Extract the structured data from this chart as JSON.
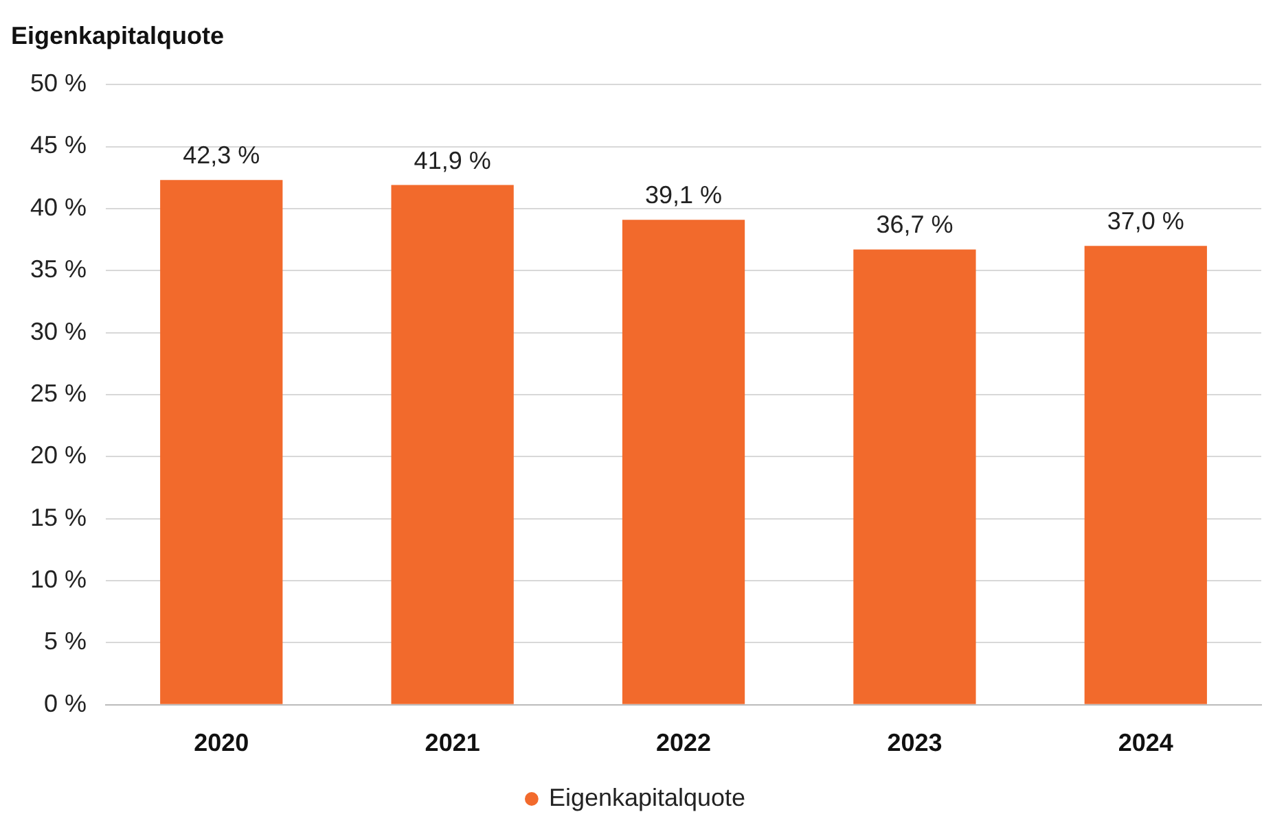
{
  "chart_data": {
    "type": "bar",
    "title": "Eigenkapitalquote",
    "categories": [
      "2020",
      "2021",
      "2022",
      "2023",
      "2024"
    ],
    "series": [
      {
        "name": "Eigenkapitalquote",
        "color": "#f26a2c",
        "values": [
          42.3,
          41.9,
          39.1,
          36.7,
          37.0
        ],
        "value_labels": [
          "42,3 %",
          "41,9 %",
          "39,1 %",
          "36,7 %",
          "37,0 %"
        ]
      }
    ],
    "ylim": [
      0,
      50
    ],
    "yticks": [
      {
        "value": 0,
        "label": "0 %"
      },
      {
        "value": 5,
        "label": "5 %"
      },
      {
        "value": 10,
        "label": "10 %"
      },
      {
        "value": 15,
        "label": "15 %"
      },
      {
        "value": 20,
        "label": "20 %"
      },
      {
        "value": 25,
        "label": "25 %"
      },
      {
        "value": 30,
        "label": "30 %"
      },
      {
        "value": 35,
        "label": "35 %"
      },
      {
        "value": 40,
        "label": "40 %"
      },
      {
        "value": 45,
        "label": "45 %"
      },
      {
        "value": 50,
        "label": "50 %"
      }
    ],
    "grid": "y",
    "legend": "bottom"
  }
}
